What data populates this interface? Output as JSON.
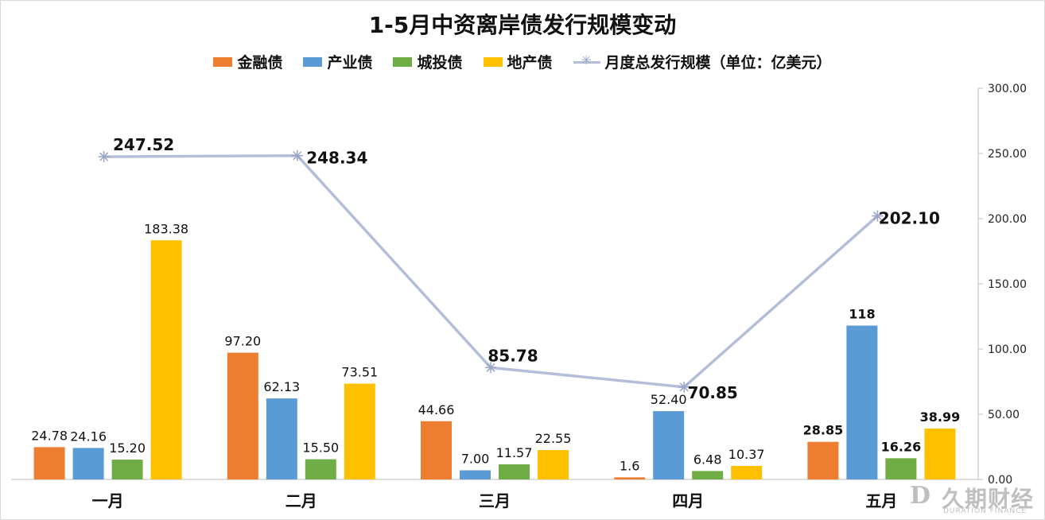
{
  "chart_data": {
    "type": "bar",
    "title": "1-5月中资离岸债发行规模变动",
    "categories": [
      "一月",
      "二月",
      "三月",
      "四月",
      "五月"
    ],
    "series": [
      {
        "name": "金融债",
        "kind": "bar",
        "color": "#ed7d31",
        "values": [
          24.78,
          97.2,
          44.66,
          1.6,
          28.85
        ],
        "labels": [
          "24.78",
          "97.20",
          "44.66",
          "1.6",
          "28.85"
        ]
      },
      {
        "name": "产业债",
        "kind": "bar",
        "color": "#5b9bd5",
        "values": [
          24.16,
          62.13,
          7.0,
          52.4,
          118
        ],
        "labels": [
          "24.16",
          "62.13",
          "7.00",
          "52.40",
          "118"
        ]
      },
      {
        "name": "城投债",
        "kind": "bar",
        "color": "#70ad47",
        "values": [
          15.2,
          15.5,
          11.57,
          6.48,
          16.26
        ],
        "labels": [
          "15.20",
          "15.50",
          "11.57",
          "6.48",
          "16.26"
        ]
      },
      {
        "name": "地产债",
        "kind": "bar",
        "color": "#ffc000",
        "values": [
          183.38,
          73.51,
          22.55,
          10.37,
          38.99
        ],
        "labels": [
          "183.38",
          "73.51",
          "22.55",
          "10.37",
          "38.99"
        ]
      },
      {
        "name": "月度总发行规模（单位：亿美元）",
        "kind": "line",
        "color": "#b4bed8",
        "values": [
          247.52,
          248.34,
          85.78,
          70.85,
          202.1
        ],
        "labels": [
          "247.52",
          "248.34",
          "85.78",
          "70.85",
          "202.10"
        ]
      }
    ],
    "y_axis_right": {
      "ticks": [
        "0.00",
        "50.00",
        "100.00",
        "150.00",
        "200.00",
        "250.00",
        "300.00"
      ],
      "range": [
        0,
        300
      ]
    },
    "grid": false,
    "legend_position": "top"
  },
  "watermark": {
    "logo": "D",
    "text": "久期财经",
    "subtext": "DURATION FINANCE"
  }
}
